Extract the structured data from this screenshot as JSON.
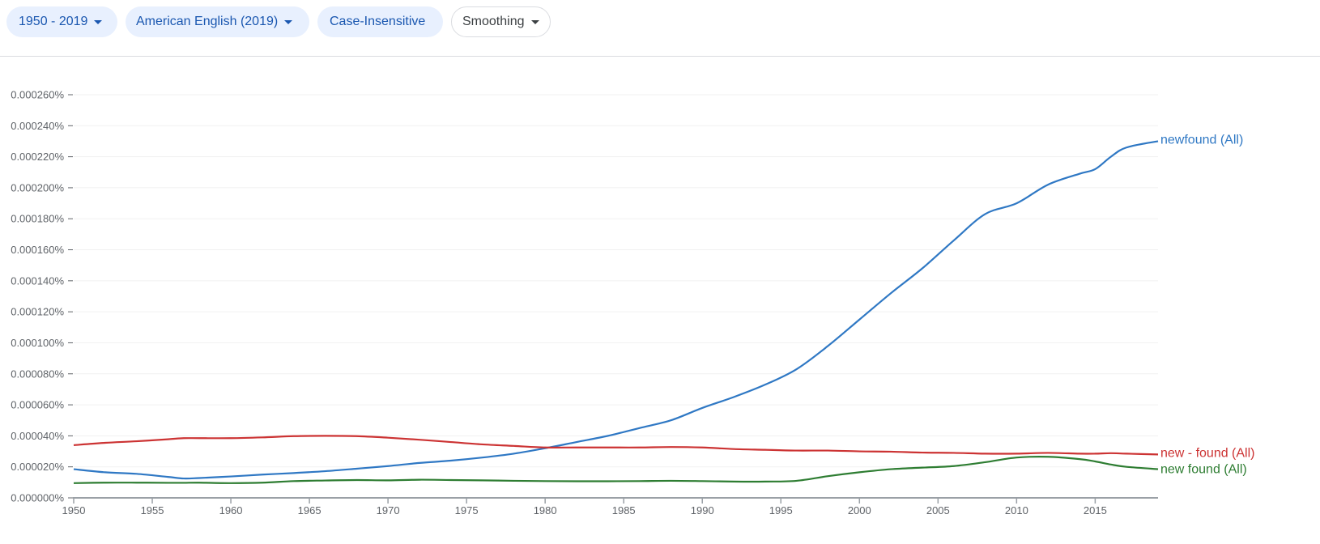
{
  "toolbar": {
    "year_range": "1950 - 2019",
    "corpus": "American English (2019)",
    "case": "Case-Insensitive",
    "smoothing": "Smoothing"
  },
  "colors": {
    "chip_bg": "#e8f0fe",
    "chip_text": "#1a57b0",
    "newfound": "#2f78c4",
    "new_dash_found": "#cc3333",
    "new_found": "#2e7d32"
  },
  "chart_data": {
    "type": "line",
    "title": "",
    "xlabel": "",
    "ylabel": "",
    "xlim": [
      1950,
      2019
    ],
    "ylim": [
      0,
      0.00026
    ],
    "grid": true,
    "legend_position": "inline-right",
    "y_ticks": [
      "0.000000%",
      "0.000020%",
      "0.000040%",
      "0.000060%",
      "0.000080%",
      "0.000100%",
      "0.000120%",
      "0.000140%",
      "0.000160%",
      "0.000180%",
      "0.000200%",
      "0.000220%",
      "0.000240%",
      "0.000260%"
    ],
    "x_ticks": [
      "1950",
      "1955",
      "1960",
      "1965",
      "1970",
      "1975",
      "1980",
      "1985",
      "1990",
      "1995",
      "2000",
      "2005",
      "2010",
      "2015"
    ],
    "x": [
      1950,
      1952,
      1954,
      1956,
      1957,
      1958,
      1960,
      1962,
      1964,
      1966,
      1968,
      1970,
      1972,
      1974,
      1976,
      1978,
      1980,
      1982,
      1984,
      1986,
      1988,
      1990,
      1992,
      1994,
      1996,
      1998,
      2000,
      2002,
      2004,
      2006,
      2008,
      2010,
      2012,
      2014,
      2015,
      2016,
      2017,
      2019
    ],
    "series": [
      {
        "name": "newfound (All)",
        "color": "#2f78c4",
        "values": [
          1.85e-05,
          1.65e-05,
          1.55e-05,
          1.35e-05,
          1.25e-05,
          1.28e-05,
          1.38e-05,
          1.5e-05,
          1.6e-05,
          1.72e-05,
          1.88e-05,
          2.05e-05,
          2.25e-05,
          2.4e-05,
          2.6e-05,
          2.85e-05,
          3.2e-05,
          3.6e-05,
          4e-05,
          4.5e-05,
          5e-05,
          5.8e-05,
          6.5e-05,
          7.3e-05,
          8.3e-05,
          9.8e-05,
          0.000115,
          0.000132,
          0.000148,
          0.000166,
          0.000183,
          0.00019,
          0.000202,
          0.000209,
          0.000212,
          0.00022,
          0.000226,
          0.00023
        ]
      },
      {
        "name": "new - found (All)",
        "color": "#cc3333",
        "values": [
          3.4e-05,
          3.55e-05,
          3.65e-05,
          3.78e-05,
          3.85e-05,
          3.85e-05,
          3.85e-05,
          3.9e-05,
          3.98e-05,
          4e-05,
          3.98e-05,
          3.88e-05,
          3.75e-05,
          3.6e-05,
          3.45e-05,
          3.35e-05,
          3.25e-05,
          3.25e-05,
          3.25e-05,
          3.25e-05,
          3.28e-05,
          3.25e-05,
          3.15e-05,
          3.1e-05,
          3.05e-05,
          3.05e-05,
          3e-05,
          2.98e-05,
          2.92e-05,
          2.9e-05,
          2.85e-05,
          2.85e-05,
          2.9e-05,
          2.85e-05,
          2.85e-05,
          2.88e-05,
          2.85e-05,
          2.8e-05
        ]
      },
      {
        "name": "new found (All)",
        "color": "#2e7d32",
        "values": [
          9.5e-06,
          9.8e-06,
          9.8e-06,
          9.7e-06,
          9.7e-06,
          9.8e-06,
          9.5e-06,
          9.8e-06,
          1.08e-05,
          1.12e-05,
          1.15e-05,
          1.13e-05,
          1.17e-05,
          1.15e-05,
          1.13e-05,
          1.1e-05,
          1.08e-05,
          1.07e-05,
          1.07e-05,
          1.08e-05,
          1.1e-05,
          1.08e-05,
          1.05e-05,
          1.05e-05,
          1.1e-05,
          1.4e-05,
          1.65e-05,
          1.85e-05,
          1.95e-05,
          2.05e-05,
          2.3e-05,
          2.6e-05,
          2.65e-05,
          2.5e-05,
          2.35e-05,
          2.15e-05,
          2e-05,
          1.85e-05
        ]
      }
    ]
  }
}
